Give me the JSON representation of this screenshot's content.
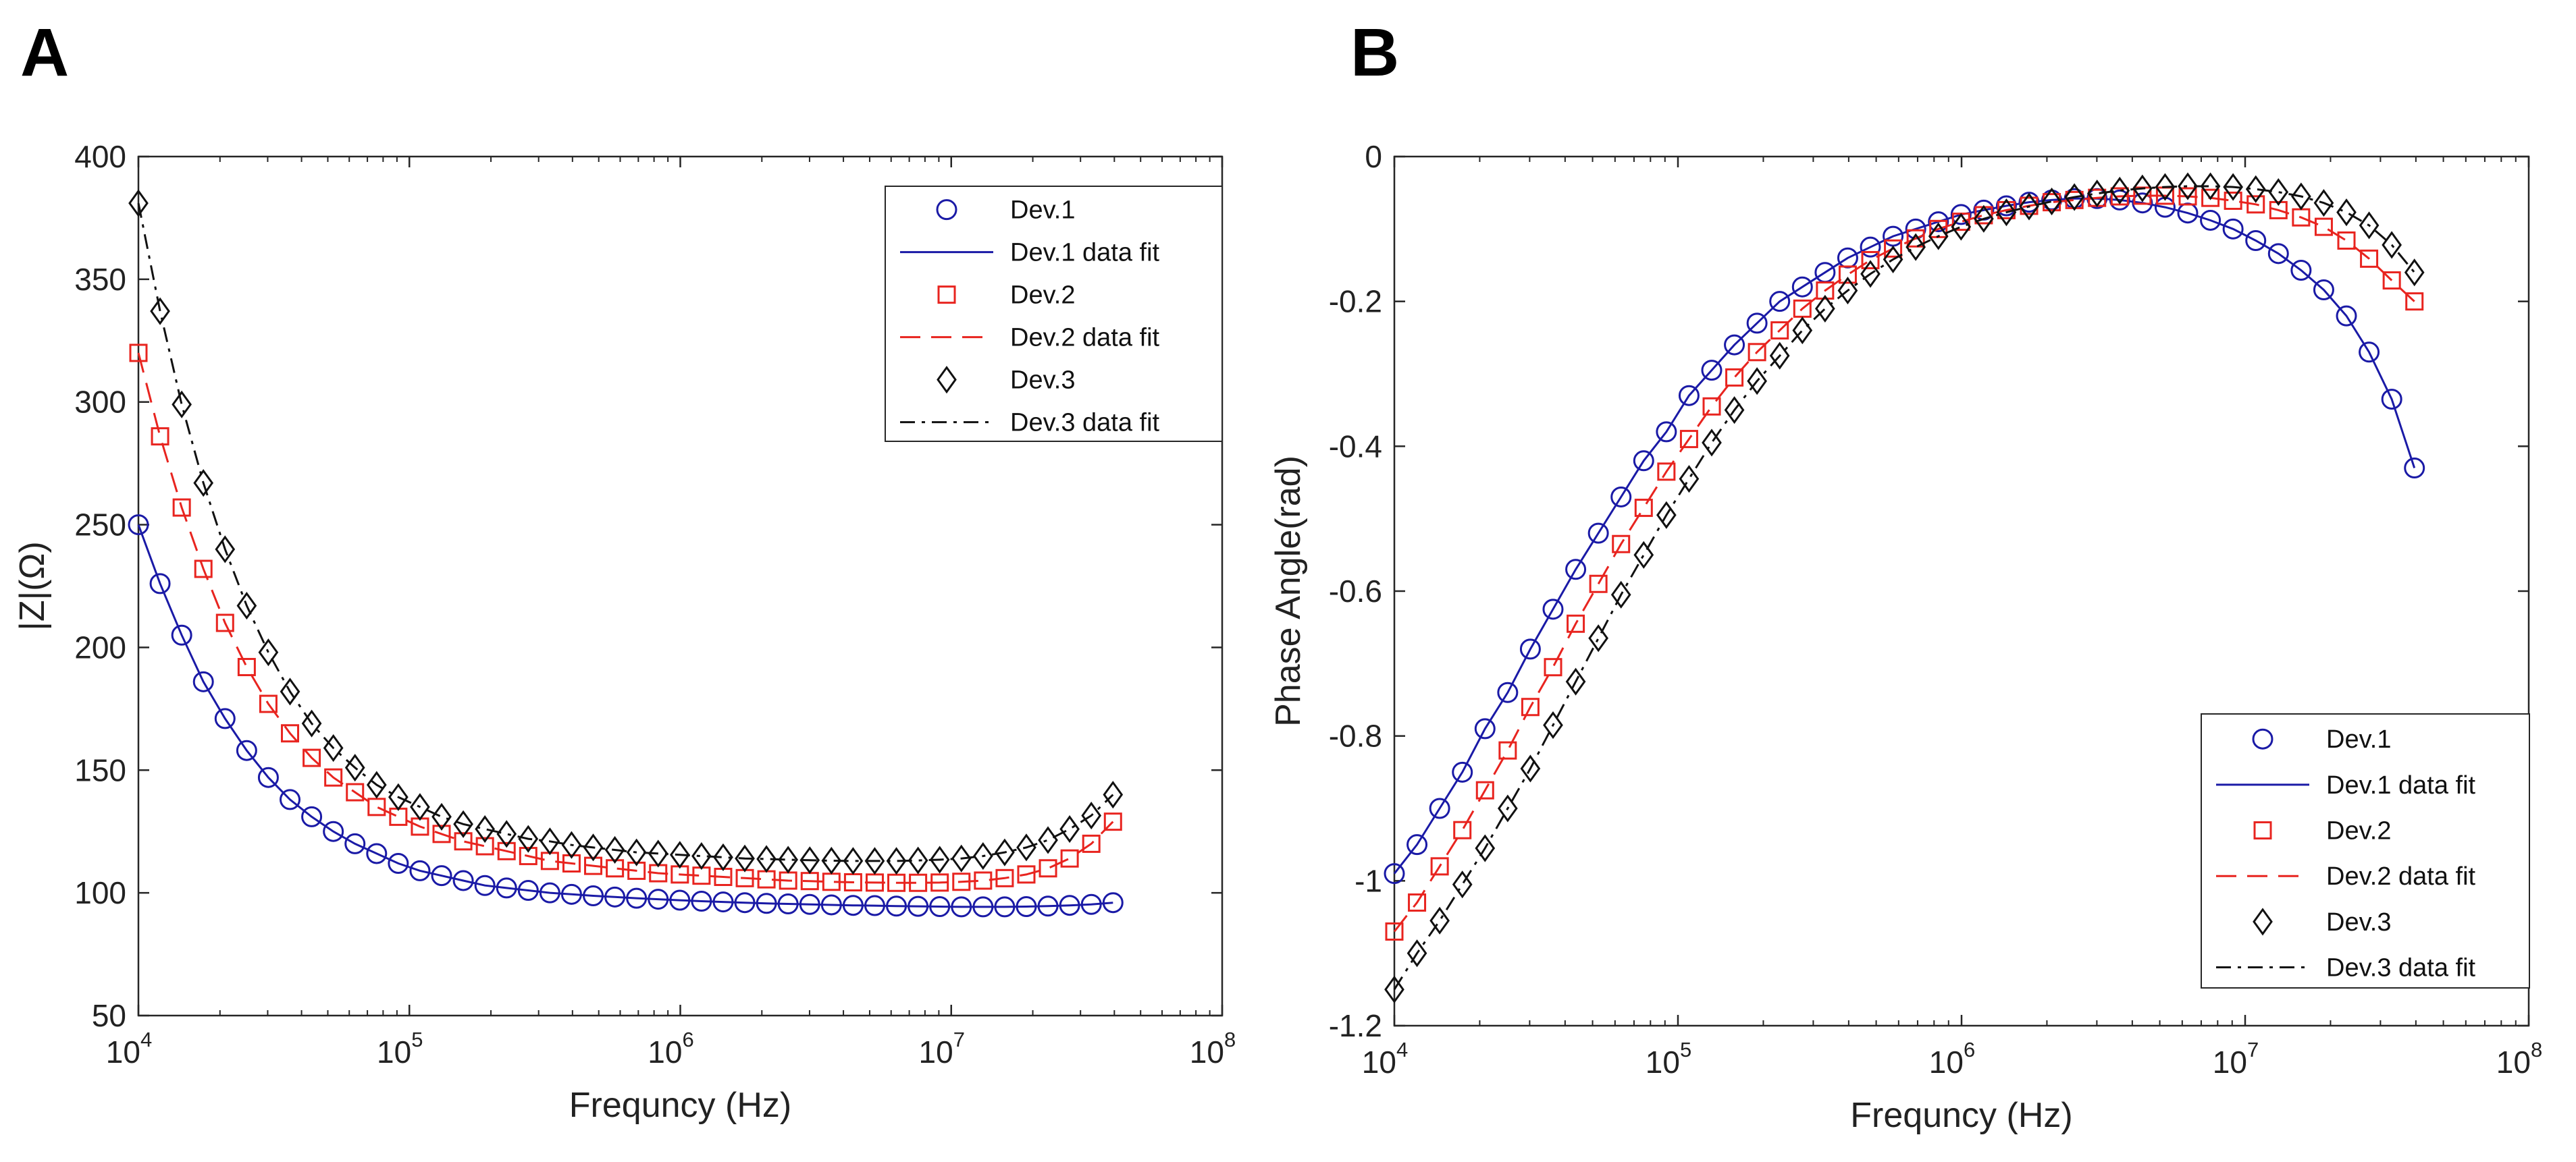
{
  "panels": [
    {
      "label": "A"
    },
    {
      "label": "B"
    }
  ],
  "chart_data": [
    {
      "type": "line",
      "title": "",
      "xlabel": "Frequncy (Hz)",
      "ylabel": "|Z|(Ω)",
      "xscale": "log",
      "xlim": [
        10000,
        100000000
      ],
      "ylim": [
        50,
        400
      ],
      "xticks": [
        {
          "base": "10",
          "exp": "4"
        },
        {
          "base": "10",
          "exp": "5"
        },
        {
          "base": "10",
          "exp": "6"
        },
        {
          "base": "10",
          "exp": "7"
        },
        {
          "base": "10",
          "exp": "8"
        }
      ],
      "yticks": [
        "50",
        "100",
        "150",
        "200",
        "250",
        "300",
        "350",
        "400"
      ],
      "legend_position": "top-right",
      "series": [
        {
          "name": "Dev.1",
          "fit_name": "Dev.1 data fit",
          "color": "#1a1aa6",
          "marker": "circle",
          "linestyle": "solid",
          "x": [
            10000,
            12020,
            14450,
            17370,
            20880,
            25100,
            30170,
            36270,
            43600,
            52410,
            63000,
            75730,
            91030,
            109430,
            131540,
            158120,
            190070,
            228480,
            274650,
            330150,
            396870,
            477070,
            573470,
            689360,
            828660,
            996120,
            1197420,
            1439390,
            1730250,
            2079900,
            2500190,
            3005420,
            3612740,
            4342790,
            5220360,
            6275270,
            7543350,
            9067680,
            10900020,
            13102630,
            15750320,
            18933070,
            22759010,
            27358080,
            32886580,
            39532300
          ],
          "values": [
            250,
            226,
            205,
            186,
            171,
            158,
            147,
            138,
            131,
            125,
            120,
            116,
            112,
            109,
            107,
            105,
            103,
            102,
            101,
            100,
            99.4,
            98.8,
            98.3,
            97.8,
            97.4,
            97.0,
            96.6,
            96.3,
            96.0,
            95.7,
            95.5,
            95.3,
            95.1,
            94.9,
            94.8,
            94.6,
            94.5,
            94.4,
            94.3,
            94.3,
            94.3,
            94.4,
            94.6,
            94.9,
            95.3,
            96.0
          ]
        },
        {
          "name": "Dev.2",
          "fit_name": "Dev.2 data fit",
          "color": "#e8241f",
          "marker": "square",
          "linestyle": "dashed",
          "x": [
            10000,
            12020,
            14450,
            17370,
            20880,
            25100,
            30170,
            36270,
            43600,
            52410,
            63000,
            75730,
            91030,
            109430,
            131540,
            158120,
            190070,
            228480,
            274650,
            330150,
            396870,
            477070,
            573470,
            689360,
            828660,
            996120,
            1197420,
            1439390,
            1730250,
            2079900,
            2500190,
            3005420,
            3612740,
            4342790,
            5220360,
            6275270,
            7543350,
            9067680,
            10900020,
            13102630,
            15750320,
            18933070,
            22759010,
            27358080,
            32886580,
            39532300
          ],
          "values": [
            320,
            286,
            257,
            232,
            210,
            192,
            177,
            165,
            155,
            147,
            141,
            135,
            131,
            127,
            124,
            121,
            119,
            117,
            115,
            113,
            112,
            111,
            110,
            109,
            108,
            107.5,
            107,
            106.5,
            106,
            105.5,
            105,
            104.8,
            104.5,
            104.3,
            104.2,
            104.1,
            104.1,
            104.2,
            104.5,
            105,
            106,
            107.5,
            110,
            114,
            120,
            129
          ]
        },
        {
          "name": "Dev.3",
          "fit_name": "Dev.3 data fit",
          "color": "#111111",
          "marker": "diamond",
          "linestyle": "dashdot",
          "x": [
            10000,
            12020,
            14450,
            17370,
            20880,
            25100,
            30170,
            36270,
            43600,
            52410,
            63000,
            75730,
            91030,
            109430,
            131540,
            158120,
            190070,
            228480,
            274650,
            330150,
            396870,
            477070,
            573470,
            689360,
            828660,
            996120,
            1197420,
            1439390,
            1730250,
            2079900,
            2500190,
            3005420,
            3612740,
            4342790,
            5220360,
            6275270,
            7543350,
            9067680,
            10900020,
            13102630,
            15750320,
            18933070,
            22759010,
            27358080,
            32886580,
            39532300
          ],
          "values": [
            381,
            337,
            299,
            267,
            240,
            217,
            198,
            182,
            169,
            159,
            151,
            144,
            139,
            135,
            131,
            128,
            126,
            124,
            122,
            121,
            119.5,
            118.5,
            117.5,
            116.5,
            116,
            115.5,
            115,
            114.5,
            114,
            113.8,
            113.5,
            113.3,
            113.1,
            113,
            113,
            113,
            113.2,
            113.5,
            114,
            115,
            116.5,
            118.5,
            121.5,
            126,
            131.5,
            140
          ]
        }
      ]
    },
    {
      "type": "line",
      "title": "",
      "xlabel": "Frequncy (Hz)",
      "ylabel": "Phase Angle(rad)",
      "xscale": "log",
      "xlim": [
        10000,
        100000000
      ],
      "ylim": [
        -1.2,
        0
      ],
      "xticks": [
        {
          "base": "10",
          "exp": "4"
        },
        {
          "base": "10",
          "exp": "5"
        },
        {
          "base": "10",
          "exp": "6"
        },
        {
          "base": "10",
          "exp": "7"
        },
        {
          "base": "10",
          "exp": "8"
        }
      ],
      "yticks": [
        "-1.2",
        "-1",
        "-0.8",
        "-0.6",
        "-0.4",
        "-0.2",
        "0"
      ],
      "legend_position": "bottom-right",
      "series": [
        {
          "name": "Dev.1",
          "fit_name": "Dev.1 data fit",
          "color": "#1a1aa6",
          "marker": "circle",
          "linestyle": "solid",
          "x": [
            10000,
            12020,
            14450,
            17370,
            20880,
            25100,
            30170,
            36270,
            43600,
            52410,
            63000,
            75730,
            91030,
            109430,
            131540,
            158120,
            190070,
            228480,
            274650,
            330150,
            396870,
            477070,
            573470,
            689360,
            828660,
            996120,
            1197420,
            1439390,
            1730250,
            2079900,
            2500190,
            3005420,
            3612740,
            4342790,
            5220360,
            6275270,
            7543350,
            9067680,
            10900020,
            13102630,
            15750320,
            18933070,
            22759010,
            27358080,
            32886580,
            39532300
          ],
          "values": [
            -0.99,
            -0.95,
            -0.9,
            -0.85,
            -0.79,
            -0.74,
            -0.68,
            -0.625,
            -0.57,
            -0.52,
            -0.47,
            -0.42,
            -0.38,
            -0.33,
            -0.295,
            -0.26,
            -0.23,
            -0.2,
            -0.18,
            -0.16,
            -0.14,
            -0.125,
            -0.11,
            -0.1,
            -0.09,
            -0.08,
            -0.074,
            -0.068,
            -0.063,
            -0.06,
            -0.058,
            -0.058,
            -0.06,
            -0.064,
            -0.07,
            -0.078,
            -0.088,
            -0.1,
            -0.116,
            -0.134,
            -0.157,
            -0.184,
            -0.22,
            -0.27,
            -0.335,
            -0.43
          ]
        },
        {
          "name": "Dev.2",
          "fit_name": "Dev.2 data fit",
          "color": "#e8241f",
          "marker": "square",
          "linestyle": "dashed",
          "x": [
            10000,
            12020,
            14450,
            17370,
            20880,
            25100,
            30170,
            36270,
            43600,
            52410,
            63000,
            75730,
            91030,
            109430,
            131540,
            158120,
            190070,
            228480,
            274650,
            330150,
            396870,
            477070,
            573470,
            689360,
            828660,
            996120,
            1197420,
            1439390,
            1730250,
            2079900,
            2500190,
            3005420,
            3612740,
            4342790,
            5220360,
            6275270,
            7543350,
            9067680,
            10900020,
            13102630,
            15750320,
            18933070,
            22759010,
            27358080,
            32886580,
            39532300
          ],
          "values": [
            -1.07,
            -1.03,
            -0.98,
            -0.93,
            -0.875,
            -0.82,
            -0.76,
            -0.705,
            -0.645,
            -0.59,
            -0.535,
            -0.485,
            -0.435,
            -0.39,
            -0.345,
            -0.305,
            -0.27,
            -0.24,
            -0.21,
            -0.185,
            -0.163,
            -0.143,
            -0.127,
            -0.113,
            -0.1,
            -0.09,
            -0.081,
            -0.074,
            -0.068,
            -0.063,
            -0.06,
            -0.057,
            -0.055,
            -0.054,
            -0.054,
            -0.055,
            -0.057,
            -0.061,
            -0.066,
            -0.074,
            -0.084,
            -0.097,
            -0.116,
            -0.141,
            -0.171,
            -0.2
          ]
        },
        {
          "name": "Dev.3",
          "fit_name": "Dev.3 data fit",
          "color": "#111111",
          "marker": "diamond",
          "linestyle": "dashdot",
          "x": [
            10000,
            12020,
            14450,
            17370,
            20880,
            25100,
            30170,
            36270,
            43600,
            52410,
            63000,
            75730,
            91030,
            109430,
            131540,
            158120,
            190070,
            228480,
            274650,
            330150,
            396870,
            477070,
            573470,
            689360,
            828660,
            996120,
            1197420,
            1439390,
            1730250,
            2079900,
            2500190,
            3005420,
            3612740,
            4342790,
            5220360,
            6275270,
            7543350,
            9067680,
            10900020,
            13102630,
            15750320,
            18933070,
            22759010,
            27358080,
            32886580,
            39532300
          ],
          "values": [
            -1.15,
            -1.1,
            -1.055,
            -1.005,
            -0.955,
            -0.9,
            -0.845,
            -0.785,
            -0.725,
            -0.665,
            -0.605,
            -0.55,
            -0.495,
            -0.445,
            -0.395,
            -0.35,
            -0.31,
            -0.275,
            -0.24,
            -0.21,
            -0.185,
            -0.162,
            -0.142,
            -0.125,
            -0.11,
            -0.097,
            -0.086,
            -0.077,
            -0.069,
            -0.062,
            -0.056,
            -0.051,
            -0.047,
            -0.044,
            -0.042,
            -0.041,
            -0.041,
            -0.042,
            -0.045,
            -0.049,
            -0.055,
            -0.064,
            -0.077,
            -0.095,
            -0.122,
            -0.16
          ]
        }
      ]
    }
  ]
}
